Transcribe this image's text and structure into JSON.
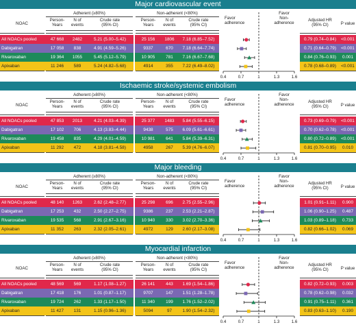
{
  "header_labels": {
    "noac": "NOAC",
    "adherent": "Adherent (≥80%)",
    "non_adherent": "Non-adherent (<80%)",
    "person_years": "Person-\nYears",
    "n_events": "N of\nevents",
    "crude_rate": "Crude rate\n(95% CI)",
    "favor_adherence": "Favor\nadherence",
    "favor_non_adherence": "Favor\nNon-\nadherence",
    "adjusted_hr": "Adjusted HR\n(95% CI)",
    "p_value": "P value"
  },
  "axis": {
    "min": 0.4,
    "max": 1.6,
    "ticks": [
      "0.4",
      "0.7",
      "1",
      "1.3",
      "1.6"
    ],
    "reference": 1.0
  },
  "colors": {
    "title_bar": "#1a7f8e",
    "pooled": "#e0284b",
    "dabigatran": "#7b68b3",
    "rivaroxaban": "#1d8a5a",
    "apixaban": "#f3c418"
  },
  "row_colors": [
    "pooled",
    "dabigatran",
    "rivaroxaban",
    "apixaban"
  ],
  "sections": [
    {
      "title": "Major cardiovascular event",
      "rows": [
        {
          "label": "All NOACs pooled",
          "a_py": "47 668",
          "a_n": "2482",
          "a_rate": "5.21 (5.00–5.42)",
          "n_py": "25 156",
          "n_n": "1806",
          "n_rate": "7.18 (6.85–7.52)",
          "hr_text": "0.79 (0.74–0.84)",
          "p": "<0.001"
        },
        {
          "label": "Dabigatran",
          "a_py": "17 058",
          "a_n": "838",
          "a_rate": "4.91 (4.59–5.26)",
          "n_py": "9337",
          "n_n": "670",
          "n_rate": "7.18 (6.64–7.74)",
          "hr_text": "0.71 (0.64–0.79)",
          "p": "<0.001"
        },
        {
          "label": "Rivaroxaban",
          "a_py": "19 364",
          "a_n": "1055",
          "a_rate": "5.45 (5.12–5.79)",
          "n_py": "10 905",
          "n_n": "781",
          "n_rate": "7.16 (6.67–7.68)",
          "hr_text": "0.84 (0.76–0.93)",
          "p": "0.001"
        },
        {
          "label": "Apixaban",
          "a_py": "11 246",
          "a_n": "589",
          "a_rate": "5.24 (4.82–5.68)",
          "n_py": "4914",
          "n_n": "355",
          "n_rate": "7.22 (6.49–8.02)",
          "hr_text": "0.78 (0.68–0.89)",
          "p": "<0.001"
        }
      ]
    },
    {
      "title": "Ischaemic stroke/systemic embolism",
      "rows": [
        {
          "label": "All NOACs pooled",
          "a_py": "47 853",
          "a_n": "2013",
          "a_rate": "4.21 (4.03–4.39)",
          "n_py": "25 377",
          "n_n": "1483",
          "n_rate": "5.84 (5.55–6.15)",
          "hr_text": "0.73 (0.69–0.79)",
          "p": "<0.001"
        },
        {
          "label": "Dabigatran",
          "a_py": "17 102",
          "a_n": "706",
          "a_rate": "4.13 (3.83–4.44)",
          "n_py": "9438",
          "n_n": "575",
          "n_rate": "6.09 (5.61–6.61)",
          "hr_text": "0.70 (0.62–0.78)",
          "p": "<0.001"
        },
        {
          "label": "Rivaroxaban",
          "a_py": "19 458",
          "a_n": "835",
          "a_rate": "4.29 (4.01–4.59)",
          "n_py": "10 981",
          "n_n": "641",
          "n_rate": "5.84 (5.39–6.31)",
          "hr_text": "0.80 (0.72–0.89)",
          "p": "<0.001"
        },
        {
          "label": "Apixaban",
          "a_py": "11 292",
          "a_n": "472",
          "a_rate": "4.18 (3.81–4.58)",
          "n_py": "4958",
          "n_n": "267",
          "n_rate": "5.39 (4.76–6.07)",
          "hr_text": "0.81 (0.70–0.95)",
          "p": "0.010"
        }
      ]
    },
    {
      "title": "Major bleeding",
      "rows": [
        {
          "label": "All NOACs pooled",
          "a_py": "48 140",
          "a_n": "1263",
          "a_rate": "2.62 (2.48–2.77)",
          "n_py": "25 298",
          "n_n": "696",
          "n_rate": "2.75 (2.55–2.96)",
          "hr_text": "1.01 (0.91–1.11)",
          "p": "0.900"
        },
        {
          "label": "Dabigatran",
          "a_py": "17 253",
          "a_n": "432",
          "a_rate": "2.50 (2.27–2.75)",
          "n_py": "9386",
          "n_n": "237",
          "n_rate": "2.53 (2.21–2.87)",
          "hr_text": "1.06 (0.90–1.25)",
          "p": "0.487"
        },
        {
          "label": "Rivaroxaban",
          "a_py": "19 535",
          "a_n": "568",
          "a_rate": "2.91 (2.67–3.16)",
          "n_py": "10 940",
          "n_n": "330",
          "n_rate": "3.02 (2.70–3.36)",
          "hr_text": "1.03 (0.89–1.18)",
          "p": "0.733"
        },
        {
          "label": "Apixaban",
          "a_py": "11 352",
          "a_n": "263",
          "a_rate": "2.32 (2.05–2.61)",
          "n_py": "4972",
          "n_n": "129",
          "n_rate": "2.60 (2.17–3.08)",
          "hr_text": "0.82 (0.66–1.02)",
          "p": "0.069"
        }
      ]
    },
    {
      "title": "Myocardial infarction",
      "rows": [
        {
          "label": "All NOACs pooled",
          "a_py": "48 569",
          "a_n": "569",
          "a_rate": "1.17 (1.08–1.27)",
          "n_py": "26 141",
          "n_n": "443",
          "n_rate": "1.69 (1.54–1.86)",
          "hr_text": "0.82 (0.72–0.93)",
          "p": "0.003"
        },
        {
          "label": "Dabigatran",
          "a_py": "17 418",
          "a_n": "176",
          "a_rate": "1.01 (0.87–1.17)",
          "n_py": "9707",
          "n_n": "147",
          "n_rate": "1.51 (1.28–1.78)",
          "hr_text": "0.78 (0.62–0.98)",
          "p": "0.032"
        },
        {
          "label": "Rivaroxaban",
          "a_py": "19 724",
          "a_n": "262",
          "a_rate": "1.33 (1.17–1.50)",
          "n_py": "11 340",
          "n_n": "199",
          "n_rate": "1.76 (1.52–2.02)",
          "hr_text": "0.91 (0.75–1.11)",
          "p": "0.361"
        },
        {
          "label": "Apixaban",
          "a_py": "11 427",
          "a_n": "131",
          "a_rate": "1.15 (0.96–1.36)",
          "n_py": "5094",
          "n_n": "97",
          "n_rate": "1.90 (1.54–2.32)",
          "hr_text": "0.83 (0.63–1.10)",
          "p": "0.190"
        }
      ]
    }
  ],
  "chart_data": {
    "type": "forest",
    "x_scale": "linear",
    "xlim": [
      0.4,
      1.6
    ],
    "reference_line": 1.0,
    "series": [
      {
        "name": "Major cardiovascular event",
        "points": [
          {
            "category": "All NOACs pooled",
            "hr": 0.79,
            "lo": 0.74,
            "hi": 0.84
          },
          {
            "category": "Dabigatran",
            "hr": 0.71,
            "lo": 0.64,
            "hi": 0.79
          },
          {
            "category": "Rivaroxaban",
            "hr": 0.84,
            "lo": 0.76,
            "hi": 0.93
          },
          {
            "category": "Apixaban",
            "hr": 0.78,
            "lo": 0.68,
            "hi": 0.89
          }
        ]
      },
      {
        "name": "Ischaemic stroke/systemic embolism",
        "points": [
          {
            "category": "All NOACs pooled",
            "hr": 0.73,
            "lo": 0.69,
            "hi": 0.79
          },
          {
            "category": "Dabigatran",
            "hr": 0.7,
            "lo": 0.62,
            "hi": 0.78
          },
          {
            "category": "Rivaroxaban",
            "hr": 0.8,
            "lo": 0.72,
            "hi": 0.89
          },
          {
            "category": "Apixaban",
            "hr": 0.81,
            "lo": 0.7,
            "hi": 0.95
          }
        ]
      },
      {
        "name": "Major bleeding",
        "points": [
          {
            "category": "All NOACs pooled",
            "hr": 1.01,
            "lo": 0.91,
            "hi": 1.11
          },
          {
            "category": "Dabigatran",
            "hr": 1.06,
            "lo": 0.9,
            "hi": 1.25
          },
          {
            "category": "Rivaroxaban",
            "hr": 1.03,
            "lo": 0.89,
            "hi": 1.18
          },
          {
            "category": "Apixaban",
            "hr": 0.82,
            "lo": 0.66,
            "hi": 1.02
          }
        ]
      },
      {
        "name": "Myocardial infarction",
        "points": [
          {
            "category": "All NOACs pooled",
            "hr": 0.82,
            "lo": 0.72,
            "hi": 0.93
          },
          {
            "category": "Dabigatran",
            "hr": 0.78,
            "lo": 0.62,
            "hi": 0.98
          },
          {
            "category": "Rivaroxaban",
            "hr": 0.91,
            "lo": 0.75,
            "hi": 1.11
          },
          {
            "category": "Apixaban",
            "hr": 0.83,
            "lo": 0.63,
            "hi": 1.1
          }
        ]
      }
    ]
  }
}
